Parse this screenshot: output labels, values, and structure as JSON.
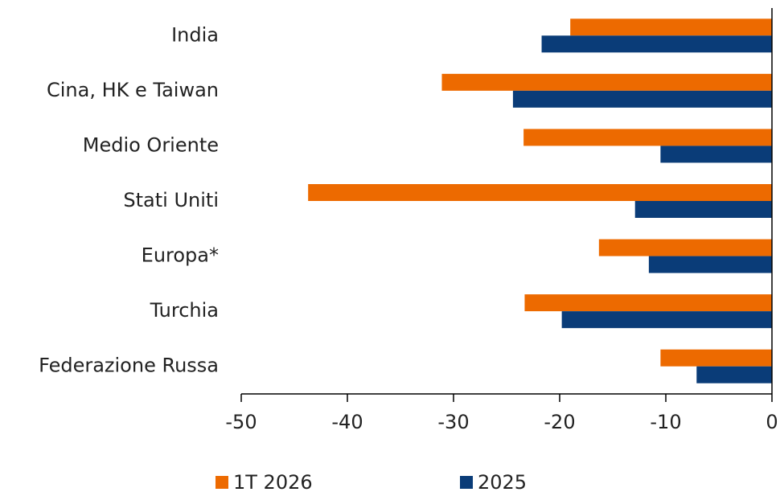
{
  "chart_data": {
    "type": "barh",
    "categories": [
      "India",
      "Cina, HK e Taiwan",
      "Medio Oriente",
      "Stati Uniti",
      "Europa*",
      "Turchia",
      "Federazione Russa"
    ],
    "series": [
      {
        "name": "1T 2026",
        "color": "#ed6a00",
        "values": [
          -19,
          -31.1,
          -23.4,
          -43.7,
          -16.3,
          -23.3,
          -10.5
        ]
      },
      {
        "name": "2025",
        "color": "#0a3c78",
        "values": [
          -21.7,
          -24.4,
          -10.5,
          -12.9,
          -11.6,
          -19.8,
          -7.1
        ]
      }
    ],
    "xlim": [
      -50,
      0
    ],
    "xticks": [
      -50,
      -40,
      -30,
      -20,
      -10,
      0
    ],
    "legend": "bottom"
  }
}
